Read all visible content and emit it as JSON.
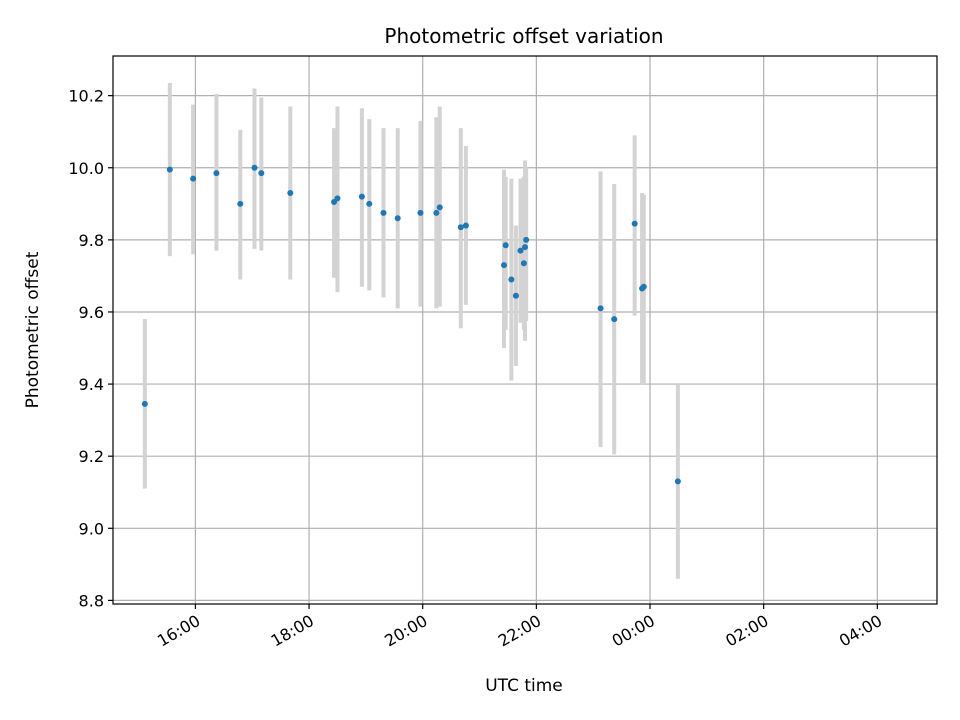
{
  "chart_data": {
    "type": "scatter",
    "title": "Photometric offset variation",
    "xlabel": "UTC time",
    "ylabel": "Photometric offset",
    "x_unit": "hours",
    "xlim": [
      14.55,
      29.05
    ],
    "ylim": [
      8.79,
      10.31
    ],
    "x_ticks": [
      {
        "value": 16,
        "label": "16:00"
      },
      {
        "value": 18,
        "label": "18:00"
      },
      {
        "value": 20,
        "label": "20:00"
      },
      {
        "value": 22,
        "label": "22:00"
      },
      {
        "value": 24,
        "label": "00:00"
      },
      {
        "value": 26,
        "label": "02:00"
      },
      {
        "value": 28,
        "label": "04:00"
      }
    ],
    "y_ticks": [
      {
        "value": 8.8,
        "label": "8.8"
      },
      {
        "value": 9.0,
        "label": "9.0"
      },
      {
        "value": 9.2,
        "label": "9.2"
      },
      {
        "value": 9.4,
        "label": "9.4"
      },
      {
        "value": 9.6,
        "label": "9.6"
      },
      {
        "value": 9.8,
        "label": "9.8"
      },
      {
        "value": 10.0,
        "label": "10.0"
      },
      {
        "value": 10.2,
        "label": "10.2"
      }
    ],
    "grid": true,
    "colors": {
      "point": "#1f77b4",
      "errorbar": "#d3d3d3",
      "grid": "#b0b0b0"
    },
    "points": [
      {
        "x": 15.11,
        "y": 9.345,
        "yerr_low": 9.11,
        "yerr_high": 9.58
      },
      {
        "x": 15.55,
        "y": 9.995,
        "yerr_low": 9.755,
        "yerr_high": 10.235
      },
      {
        "x": 15.96,
        "y": 9.97,
        "yerr_low": 9.76,
        "yerr_high": 10.175
      },
      {
        "x": 16.37,
        "y": 9.985,
        "yerr_low": 9.77,
        "yerr_high": 10.205
      },
      {
        "x": 16.79,
        "y": 9.9,
        "yerr_low": 9.69,
        "yerr_high": 10.105
      },
      {
        "x": 17.04,
        "y": 10.0,
        "yerr_low": 9.775,
        "yerr_high": 10.22
      },
      {
        "x": 17.16,
        "y": 9.985,
        "yerr_low": 9.77,
        "yerr_high": 10.195
      },
      {
        "x": 17.67,
        "y": 9.93,
        "yerr_low": 9.69,
        "yerr_high": 10.17
      },
      {
        "x": 18.44,
        "y": 9.905,
        "yerr_low": 9.695,
        "yerr_high": 10.11
      },
      {
        "x": 18.5,
        "y": 9.915,
        "yerr_low": 9.655,
        "yerr_high": 10.17
      },
      {
        "x": 18.93,
        "y": 9.92,
        "yerr_low": 9.67,
        "yerr_high": 10.165
      },
      {
        "x": 19.06,
        "y": 9.9,
        "yerr_low": 9.66,
        "yerr_high": 10.135
      },
      {
        "x": 19.31,
        "y": 9.875,
        "yerr_low": 9.64,
        "yerr_high": 10.11
      },
      {
        "x": 19.56,
        "y": 9.86,
        "yerr_low": 9.61,
        "yerr_high": 10.11
      },
      {
        "x": 19.96,
        "y": 9.875,
        "yerr_low": 9.615,
        "yerr_high": 10.13
      },
      {
        "x": 20.24,
        "y": 9.875,
        "yerr_low": 9.61,
        "yerr_high": 10.14
      },
      {
        "x": 20.3,
        "y": 9.89,
        "yerr_low": 9.615,
        "yerr_high": 10.17
      },
      {
        "x": 20.67,
        "y": 9.835,
        "yerr_low": 9.555,
        "yerr_high": 10.11
      },
      {
        "x": 20.76,
        "y": 9.84,
        "yerr_low": 9.62,
        "yerr_high": 10.06
      },
      {
        "x": 21.43,
        "y": 9.73,
        "yerr_low": 9.5,
        "yerr_high": 9.995
      },
      {
        "x": 21.46,
        "y": 9.785,
        "yerr_low": 9.55,
        "yerr_high": 9.975
      },
      {
        "x": 21.56,
        "y": 9.69,
        "yerr_low": 9.41,
        "yerr_high": 9.97
      },
      {
        "x": 21.64,
        "y": 9.645,
        "yerr_low": 9.45,
        "yerr_high": 9.84
      },
      {
        "x": 21.72,
        "y": 9.77,
        "yerr_low": 9.57,
        "yerr_high": 9.97
      },
      {
        "x": 21.78,
        "y": 9.735,
        "yerr_low": 9.55,
        "yerr_high": 9.975
      },
      {
        "x": 21.8,
        "y": 9.78,
        "yerr_low": 9.52,
        "yerr_high": 10.02
      },
      {
        "x": 21.82,
        "y": 9.8,
        "yerr_low": 9.575,
        "yerr_high": 10.0
      },
      {
        "x": 23.13,
        "y": 9.61,
        "yerr_low": 9.225,
        "yerr_high": 9.99
      },
      {
        "x": 23.37,
        "y": 9.58,
        "yerr_low": 9.205,
        "yerr_high": 9.955
      },
      {
        "x": 23.73,
        "y": 9.845,
        "yerr_low": 9.59,
        "yerr_high": 10.09
      },
      {
        "x": 23.86,
        "y": 9.665,
        "yerr_low": 9.4,
        "yerr_high": 9.93
      },
      {
        "x": 23.89,
        "y": 9.67,
        "yerr_low": 9.4,
        "yerr_high": 9.925
      },
      {
        "x": 24.49,
        "y": 9.13,
        "yerr_low": 8.86,
        "yerr_high": 9.4
      }
    ]
  }
}
